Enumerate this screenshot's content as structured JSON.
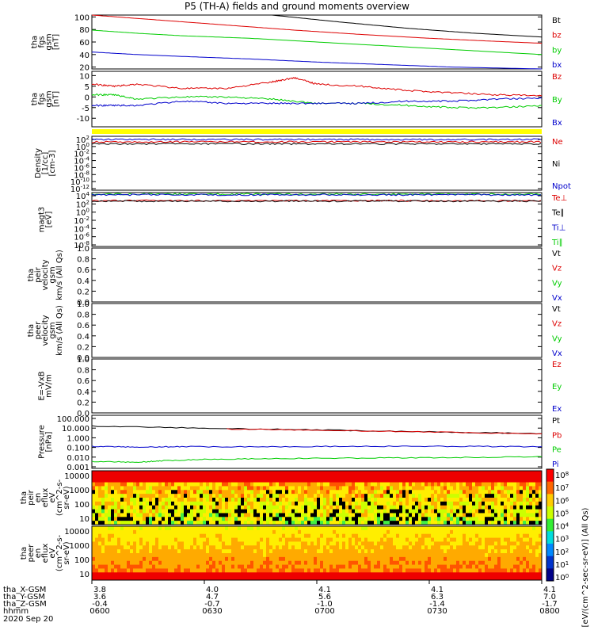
{
  "title": "P5 (TH-A) fields and ground moments overview",
  "date": "2020 Sep 20",
  "colors": {
    "black": "#000000",
    "red": "#dd0000",
    "green": "#00cc00",
    "blue": "#0000cc",
    "yellow": "#ffff00"
  },
  "chart_data": [
    {
      "type": "line",
      "ylabel": [
        "tha",
        "fgs",
        "gsm",
        "[nT]"
      ],
      "yticks": [
        20,
        40,
        60,
        80,
        100
      ],
      "ylim": [
        17,
        103
      ],
      "legend": [
        {
          "name": "Bt",
          "color": "black"
        },
        {
          "name": "bz",
          "color": "red"
        },
        {
          "name": "by",
          "color": "green"
        },
        {
          "name": "bx",
          "color": "blue"
        }
      ],
      "series": [
        {
          "name": "Bt",
          "color": "black",
          "x": [
            0.4,
            0.55,
            0.7,
            0.85,
            1.0
          ],
          "y": [
            103,
            92,
            82,
            74,
            68
          ]
        },
        {
          "name": "bz",
          "color": "red",
          "x": [
            0,
            0.15,
            0.3,
            0.45,
            0.6,
            0.75,
            0.9,
            1.0
          ],
          "y": [
            103,
            95,
            87,
            79,
            72,
            66,
            61,
            58
          ]
        },
        {
          "name": "by",
          "color": "green",
          "x": [
            0,
            0.1,
            0.2,
            0.35,
            0.5,
            0.65,
            0.8,
            1.0
          ],
          "y": [
            79,
            74,
            70,
            66,
            60,
            54,
            48,
            40
          ]
        },
        {
          "name": "bx",
          "color": "blue",
          "x": [
            0,
            0.1,
            0.2,
            0.35,
            0.5,
            0.65,
            0.8,
            1.0
          ],
          "y": [
            44,
            40,
            37,
            33,
            28,
            24,
            20,
            17
          ]
        }
      ]
    },
    {
      "type": "line",
      "ylabel": [
        "tha",
        "fgs",
        "gsm",
        "[nT]"
      ],
      "yticks": [
        -10,
        -5,
        0,
        5,
        10
      ],
      "ylim": [
        -14,
        12
      ],
      "legend": [
        {
          "name": "Bz",
          "color": "red"
        },
        {
          "name": "By",
          "color": "green"
        },
        {
          "name": "Bx",
          "color": "blue"
        }
      ],
      "series": [
        {
          "name": "Bz",
          "color": "red",
          "x": [
            0,
            0.05,
            0.1,
            0.2,
            0.3,
            0.4,
            0.45,
            0.5,
            0.6,
            0.7,
            0.8,
            0.9,
            1.0
          ],
          "y": [
            6,
            5,
            6,
            4,
            4,
            7,
            9,
            6,
            5,
            3,
            2,
            1,
            0.5
          ]
        },
        {
          "name": "By",
          "color": "green",
          "x": [
            0,
            0.05,
            0.1,
            0.2,
            0.3,
            0.4,
            0.5,
            0.6,
            0.7,
            0.8,
            0.9,
            1.0
          ],
          "y": [
            1,
            1,
            -1,
            0,
            0,
            -1,
            -3,
            -3,
            -4,
            -5,
            -5,
            -4
          ]
        },
        {
          "name": "Bx",
          "color": "blue",
          "x": [
            0,
            0.05,
            0.1,
            0.2,
            0.3,
            0.4,
            0.5,
            0.6,
            0.7,
            0.8,
            0.9,
            1.0
          ],
          "y": [
            -4,
            -4,
            -4,
            -2,
            -3,
            -3,
            -3,
            -3,
            -2,
            -2,
            -1,
            -0.5
          ]
        }
      ]
    },
    {
      "type": "line",
      "log": true,
      "ylabel": [
        "Density",
        "[1/cc]",
        "[cm-3]"
      ],
      "yticks": [
        "10^2",
        "10^0",
        "10^-2",
        "10^-4",
        "10^-6",
        "10^-8",
        "10^-10",
        "10^-12"
      ],
      "legend": [
        {
          "name": "Ne",
          "color": "red"
        },
        {
          "name": "Ni",
          "color": "black"
        },
        {
          "name": "Npot",
          "color": "blue"
        }
      ],
      "series": [
        {
          "name": "Npot",
          "color": "blue",
          "level": 1.1
        },
        {
          "name": "Ne",
          "color": "red",
          "level": 0.5
        },
        {
          "name": "Ni",
          "color": "black",
          "level": 0.0
        }
      ]
    },
    {
      "type": "line",
      "log": true,
      "ylabel": [
        "magt3",
        "[eV]"
      ],
      "yticks": [
        "10^4",
        "10^2",
        "10^0",
        "10^-2",
        "10^-4",
        "10^-6",
        "10^-8"
      ],
      "legend": [
        {
          "name": "Te⊥",
          "color": "red"
        },
        {
          "name": "Te∥",
          "color": "black"
        },
        {
          "name": "Ti⊥",
          "color": "blue"
        },
        {
          "name": "Ti∥",
          "color": "green"
        }
      ],
      "series": [
        {
          "name": "Ti∥",
          "color": "green",
          "level": 4.1
        },
        {
          "name": "Ti⊥",
          "color": "blue",
          "level": 3.95
        },
        {
          "name": "Te⊥",
          "color": "red",
          "level": 2.6
        },
        {
          "name": "Te∥",
          "color": "black",
          "level": 2.5
        }
      ]
    },
    {
      "type": "line",
      "ylabel": [
        "tha",
        "peir",
        "velocity",
        "gsm",
        "km/s (All Qs)"
      ],
      "yticks": [
        "0.0",
        "0.2",
        "0.4",
        "0.6",
        "0.8",
        "1.0"
      ],
      "ylim": [
        0,
        1
      ],
      "legend": [
        {
          "name": "Vt",
          "color": "black"
        },
        {
          "name": "Vz",
          "color": "red"
        },
        {
          "name": "Vy",
          "color": "green"
        },
        {
          "name": "Vx",
          "color": "blue"
        }
      ],
      "series": []
    },
    {
      "type": "line",
      "ylabel": [
        "tha",
        "peer",
        "velocity",
        "gsm",
        "km/s (All Qs)"
      ],
      "yticks": [
        "0.0",
        "0.2",
        "0.4",
        "0.6",
        "0.8",
        "1.0"
      ],
      "ylim": [
        0,
        1
      ],
      "legend": [
        {
          "name": "Vt",
          "color": "black"
        },
        {
          "name": "Vz",
          "color": "red"
        },
        {
          "name": "Vy",
          "color": "green"
        },
        {
          "name": "Vx",
          "color": "blue"
        }
      ],
      "series": []
    },
    {
      "type": "line",
      "ylabel": [
        "E=-VxB",
        "mV/m"
      ],
      "yticks": [
        "0.0",
        "0.2",
        "0.4",
        "0.6",
        "0.8",
        "1.0"
      ],
      "ylim": [
        0,
        1
      ],
      "legend": [
        {
          "name": "Ez",
          "color": "red"
        },
        {
          "name": "Ey",
          "color": "green"
        },
        {
          "name": "Ex",
          "color": "blue"
        }
      ],
      "series": []
    },
    {
      "type": "line",
      "log": true,
      "ylabel": [
        "Pressure",
        "[nPa]"
      ],
      "yticks": [
        "100.000",
        "10.000",
        "1.000",
        "0.100",
        "0.010",
        "0.001"
      ],
      "legend": [
        {
          "name": "Pt",
          "color": "black"
        },
        {
          "name": "Pb",
          "color": "red"
        },
        {
          "name": "Pe",
          "color": "green"
        },
        {
          "name": "Pi",
          "color": "blue"
        }
      ],
      "series": [
        {
          "name": "Pt",
          "color": "black",
          "x": [
            0,
            0.25,
            0.5,
            0.75,
            1.0
          ],
          "y": [
            16,
            10,
            6.5,
            4.2,
            2.7
          ]
        },
        {
          "name": "Pb",
          "color": "red",
          "x": [
            0.3,
            0.5,
            0.75,
            1.0
          ],
          "y": [
            8,
            6.2,
            4.0,
            2.6
          ]
        },
        {
          "name": "Pi",
          "color": "blue",
          "x": [
            0,
            0.1,
            0.2,
            0.4,
            0.6,
            0.8,
            1.0
          ],
          "y": [
            0.13,
            0.11,
            0.12,
            0.12,
            0.13,
            0.13,
            0.12
          ]
        },
        {
          "name": "Pe",
          "color": "green",
          "x": [
            0,
            0.1,
            0.15,
            0.25,
            0.4,
            0.6,
            0.8,
            1.0
          ],
          "y": [
            0.0035,
            0.003,
            0.004,
            0.006,
            0.007,
            0.008,
            0.009,
            0.011
          ]
        }
      ]
    },
    {
      "type": "heatmap",
      "ylabel": [
        "tha",
        "peir",
        "en",
        "eflux",
        "eV",
        "(cm^2-s-",
        "sr-eV)"
      ],
      "yticks": [
        "10",
        "100",
        "1000",
        "10000"
      ]
    },
    {
      "type": "heatmap",
      "ylabel": [
        "tha",
        "peer",
        "en",
        "eflux",
        "eV",
        "(cm^2-s-",
        "sr-eV)"
      ],
      "yticks": [
        "10",
        "100",
        "1000",
        "10000"
      ]
    }
  ],
  "colorbar_ticks": [
    "10^8",
    "10^7",
    "10^6",
    "10^5",
    "10^4",
    "10^3",
    "10^2",
    "10^1",
    "10^0"
  ],
  "colorbar_label": "[eV/(cm^2-sec-sr-eV)] (All Qs)",
  "xaxis": {
    "row_labels": [
      "tha_X-GSM",
      "tha_Y-GSM",
      "tha_Z-GSM",
      "hhmm"
    ],
    "columns": [
      {
        "x": "3.8",
        "y": "3.6",
        "z": "-0.4",
        "t": "0600"
      },
      {
        "x": "4.0",
        "y": "4.7",
        "z": "-0.7",
        "t": "0630"
      },
      {
        "x": "4.1",
        "y": "5.6",
        "z": "-1.0",
        "t": "0700"
      },
      {
        "x": "4.1",
        "y": "6.3",
        "z": "-1.4",
        "t": "0730"
      },
      {
        "x": "4.1",
        "y": "7.0",
        "z": "-1.7",
        "t": "0800"
      }
    ]
  }
}
